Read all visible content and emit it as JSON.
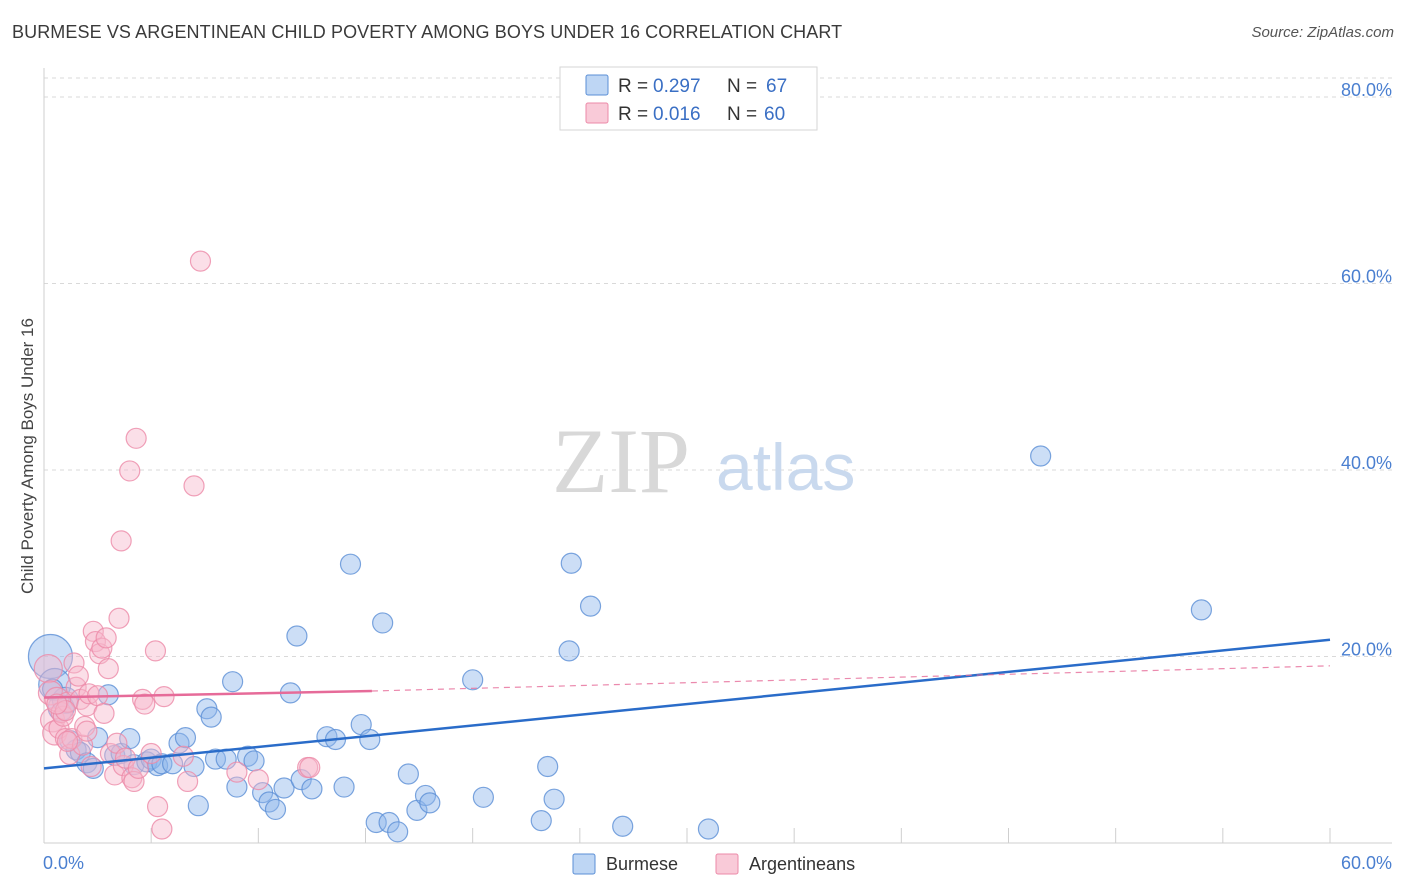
{
  "chart_data": {
    "type": "scatter",
    "title": "BURMESE VS ARGENTINEAN CHILD POVERTY AMONG BOYS UNDER 16 CORRELATION CHART",
    "source": "Source: ZipAtlas.com",
    "xlabel": "",
    "ylabel": "Child Poverty Among Boys Under 16",
    "xlim": [
      0,
      60
    ],
    "ylim": [
      0,
      84
    ],
    "x_tick_labels": {
      "left": "0.0%",
      "right": "60.0%"
    },
    "y_ticks": [
      {
        "value": 20,
        "label": "20.0%"
      },
      {
        "value": 40,
        "label": "40.0%"
      },
      {
        "value": 60,
        "label": "60.0%"
      },
      {
        "value": 80,
        "label": "80.0%"
      }
    ],
    "watermark": {
      "part1": "ZIP",
      "part2": "atlas"
    },
    "legend": {
      "entries": [
        {
          "r_label": "R =",
          "r_value": "0.297",
          "n_label": "N =",
          "n_value": "67",
          "color": "#a8c8f0"
        },
        {
          "r_label": "R =",
          "r_value": "0.016",
          "n_label": "N =",
          "n_value": "60",
          "color": "#f7b8cb"
        }
      ]
    },
    "series": [
      {
        "name": "Burmese",
        "color": "#8fb6ea",
        "stroke": "#5b8fd6",
        "trend": {
          "x": [
            0,
            60
          ],
          "y": [
            8.0,
            21.8
          ],
          "color": "#2a6cc9"
        },
        "points": [
          [
            0.3,
            20.0
          ],
          [
            0.5,
            17.0
          ],
          [
            0.8,
            14.5
          ],
          [
            1.0,
            15.3
          ],
          [
            1.2,
            11.0
          ],
          [
            1.5,
            10.0
          ],
          [
            1.7,
            9.7
          ],
          [
            2.0,
            8.6
          ],
          [
            2.3,
            8.0
          ],
          [
            2.5,
            11.3
          ],
          [
            3.0,
            15.9
          ],
          [
            3.3,
            9.4
          ],
          [
            3.6,
            9.6
          ],
          [
            4.0,
            11.2
          ],
          [
            4.2,
            8.4
          ],
          [
            4.8,
            8.7
          ],
          [
            5.0,
            9.0
          ],
          [
            5.3,
            8.3
          ],
          [
            5.5,
            8.5
          ],
          [
            6.0,
            8.5
          ],
          [
            6.3,
            10.7
          ],
          [
            6.6,
            11.3
          ],
          [
            7.0,
            8.2
          ],
          [
            7.2,
            4.0
          ],
          [
            7.6,
            14.4
          ],
          [
            7.8,
            13.5
          ],
          [
            8.0,
            9.0
          ],
          [
            8.5,
            9.0
          ],
          [
            8.8,
            17.3
          ],
          [
            9.0,
            6.0
          ],
          [
            9.5,
            9.3
          ],
          [
            9.8,
            8.8
          ],
          [
            10.2,
            5.4
          ],
          [
            10.5,
            4.4
          ],
          [
            10.8,
            3.6
          ],
          [
            11.2,
            5.9
          ],
          [
            11.5,
            16.1
          ],
          [
            11.8,
            22.2
          ],
          [
            12.0,
            6.8
          ],
          [
            12.5,
            5.8
          ],
          [
            13.2,
            11.4
          ],
          [
            13.6,
            11.1
          ],
          [
            14.0,
            6.0
          ],
          [
            14.3,
            29.9
          ],
          [
            14.8,
            12.7
          ],
          [
            15.2,
            11.1
          ],
          [
            15.5,
            2.2
          ],
          [
            15.8,
            23.6
          ],
          [
            16.1,
            2.2
          ],
          [
            16.5,
            1.2
          ],
          [
            17.0,
            7.4
          ],
          [
            17.4,
            3.5
          ],
          [
            17.8,
            5.1
          ],
          [
            18.0,
            4.3
          ],
          [
            20.0,
            17.5
          ],
          [
            20.5,
            4.9
          ],
          [
            23.2,
            2.4
          ],
          [
            23.5,
            8.2
          ],
          [
            23.8,
            4.7
          ],
          [
            24.5,
            20.6
          ],
          [
            24.6,
            30.0
          ],
          [
            25.5,
            25.4
          ],
          [
            27.0,
            1.8
          ],
          [
            31.0,
            1.5
          ],
          [
            46.5,
            41.5
          ],
          [
            54.0,
            25.0
          ],
          [
            0.4,
            16.5
          ]
        ],
        "sizes": [
          22,
          16,
          13,
          13,
          10,
          10,
          10,
          10,
          10,
          10,
          10,
          10,
          10,
          10,
          10,
          10,
          10,
          10,
          10,
          10,
          10,
          10,
          10,
          10,
          10,
          10,
          10,
          10,
          10,
          10,
          10,
          10,
          10,
          10,
          10,
          10,
          10,
          10,
          10,
          10,
          10,
          10,
          10,
          10,
          10,
          10,
          10,
          10,
          10,
          10,
          10,
          10,
          10,
          10,
          10,
          10,
          10,
          10,
          10,
          10,
          10,
          10,
          10,
          10,
          10,
          10,
          10
        ]
      },
      {
        "name": "Argentineans",
        "color": "#f7b8cb",
        "stroke": "#ec8aa8",
        "trend": {
          "x": [
            0,
            15.3
          ],
          "y": [
            15.6,
            16.3
          ],
          "color": "#e66b99"
        },
        "trend_ext": {
          "x": [
            15.3,
            60
          ],
          "y": [
            16.3,
            19.0
          ],
          "color": "#e66b99"
        },
        "points": [
          [
            0.2,
            18.7
          ],
          [
            0.3,
            16.1
          ],
          [
            0.4,
            13.2
          ],
          [
            0.5,
            11.8
          ],
          [
            0.6,
            15.4
          ],
          [
            0.7,
            12.3
          ],
          [
            0.8,
            14.0
          ],
          [
            0.9,
            13.6
          ],
          [
            1.0,
            11.2
          ],
          [
            1.1,
            15.1
          ],
          [
            1.2,
            9.5
          ],
          [
            1.3,
            11.2
          ],
          [
            1.4,
            19.3
          ],
          [
            1.5,
            16.7
          ],
          [
            1.6,
            17.9
          ],
          [
            1.7,
            15.4
          ],
          [
            1.8,
            10.5
          ],
          [
            1.9,
            12.5
          ],
          [
            2.0,
            14.7
          ],
          [
            2.1,
            16.0
          ],
          [
            2.2,
            8.2
          ],
          [
            2.3,
            22.7
          ],
          [
            2.4,
            21.6
          ],
          [
            2.5,
            15.8
          ],
          [
            2.6,
            20.3
          ],
          [
            2.7,
            20.9
          ],
          [
            2.8,
            13.9
          ],
          [
            2.9,
            22.0
          ],
          [
            3.0,
            18.7
          ],
          [
            3.1,
            9.6
          ],
          [
            3.3,
            7.3
          ],
          [
            3.4,
            10.7
          ],
          [
            3.5,
            24.1
          ],
          [
            3.6,
            32.4
          ],
          [
            3.7,
            8.3
          ],
          [
            3.8,
            9.1
          ],
          [
            4.0,
            39.9
          ],
          [
            4.1,
            7.0
          ],
          [
            4.2,
            6.6
          ],
          [
            4.3,
            43.4
          ],
          [
            4.4,
            8.0
          ],
          [
            4.6,
            15.4
          ],
          [
            4.7,
            14.9
          ],
          [
            5.0,
            9.6
          ],
          [
            5.2,
            20.6
          ],
          [
            5.3,
            3.9
          ],
          [
            5.5,
            1.5
          ],
          [
            5.6,
            15.7
          ],
          [
            6.5,
            9.3
          ],
          [
            6.7,
            6.6
          ],
          [
            7.0,
            38.3
          ],
          [
            7.3,
            62.4
          ],
          [
            9.0,
            7.6
          ],
          [
            10.0,
            6.8
          ],
          [
            12.3,
            8.1
          ],
          [
            12.4,
            8.1
          ],
          [
            1.1,
            10.9
          ],
          [
            2.0,
            12.0
          ],
          [
            1.0,
            14.2
          ],
          [
            0.6,
            14.9
          ]
        ],
        "sizes": [
          14,
          12,
          12,
          12,
          12,
          10,
          10,
          10,
          10,
          10,
          10,
          10,
          10,
          10,
          10,
          10,
          10,
          10,
          10,
          10,
          10,
          10,
          10,
          10,
          10,
          10,
          10,
          10,
          10,
          10,
          10,
          10,
          10,
          10,
          10,
          10,
          10,
          10,
          10,
          10,
          10,
          10,
          10,
          10,
          10,
          10,
          10,
          10,
          10,
          10,
          10,
          10,
          10,
          10,
          10,
          10,
          10,
          10,
          10,
          10
        ]
      }
    ]
  }
}
